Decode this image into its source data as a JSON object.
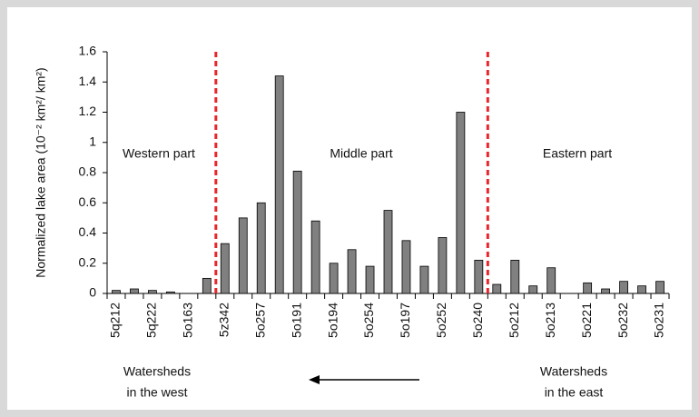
{
  "chart_data": {
    "type": "bar",
    "y_label": "Normalized lake area (10⁻² km²/ km²)",
    "categories": [
      "5q212",
      null,
      "5q222",
      null,
      "5o163",
      null,
      "5z342",
      null,
      "5o257",
      null,
      "5o191",
      null,
      "5o194",
      null,
      "5o254",
      null,
      "5o197",
      null,
      "5o252",
      null,
      "5o240",
      null,
      "5o212",
      null,
      "5o213",
      null,
      "5o221",
      null,
      "5o232",
      null,
      "5o231"
    ],
    "values": [
      0.02,
      0.03,
      0.02,
      0.01,
      0,
      0.1,
      0.33,
      0.5,
      0.6,
      1.44,
      0.81,
      0.48,
      0.2,
      0.29,
      0.18,
      0.55,
      0.35,
      0.18,
      0.37,
      1.2,
      0.22,
      0.06,
      0.22,
      0.05,
      0.17,
      0,
      0.07,
      0.03,
      0.08,
      0.05,
      0.08
    ],
    "color": "#808080",
    "ylim": [
      0,
      1.6
    ],
    "yticks": [
      0,
      0.2,
      0.4,
      0.6,
      0.8,
      1,
      1.2,
      1.4,
      1.6
    ],
    "divider_color": "#e8262b",
    "region_labels": [
      "Western part",
      "Middle part",
      "Eastern part"
    ],
    "west_note": [
      "Watersheds",
      "in the west"
    ],
    "east_note": [
      "Watersheds",
      "in the east"
    ]
  }
}
